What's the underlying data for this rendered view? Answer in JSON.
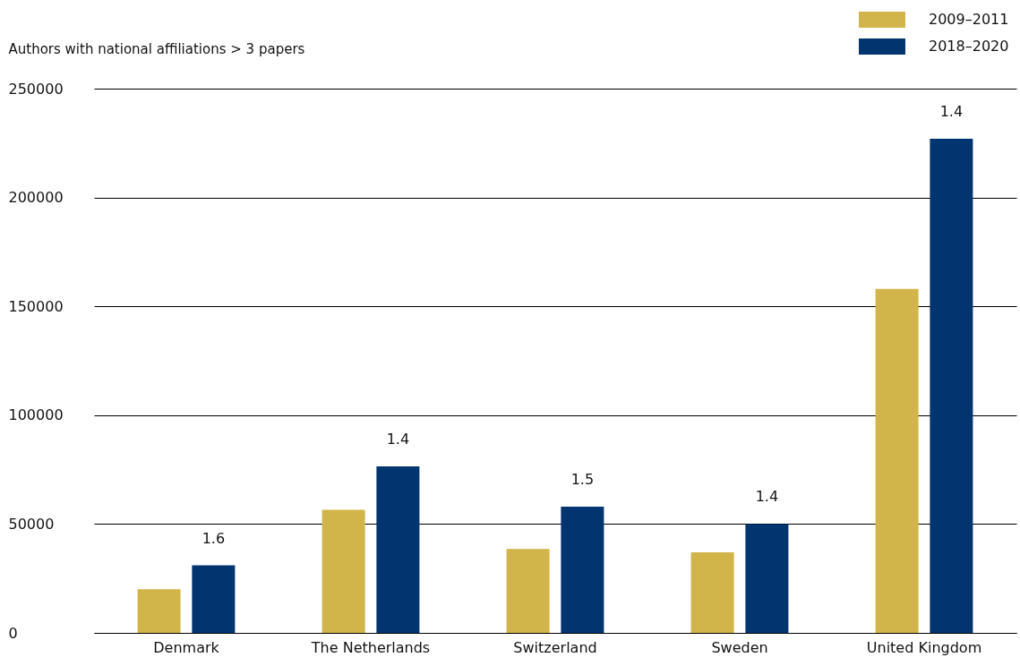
{
  "chart_data": {
    "type": "bar",
    "ylabel": "Authors with national affiliations > 3 papers",
    "categories": [
      "Denmark",
      "The Netherlands",
      "Switzerland",
      "Sweden",
      "United Kingdom"
    ],
    "series": [
      {
        "name": "2009–2011",
        "color": "#d2b54a",
        "values": [
          20000,
          56500,
          38500,
          37000,
          158000
        ]
      },
      {
        "name": "2018–2020",
        "color": "#02346f",
        "values": [
          31000,
          76500,
          58000,
          50000,
          227000
        ]
      }
    ],
    "ylim": [
      0,
      250000
    ],
    "yticks": [
      0,
      50000,
      100000,
      150000,
      200000,
      250000
    ],
    "grid": "y",
    "legend": "top right",
    "annotations": [
      "1.6",
      "1.4",
      "1.5",
      "1.4",
      "1.4"
    ]
  }
}
